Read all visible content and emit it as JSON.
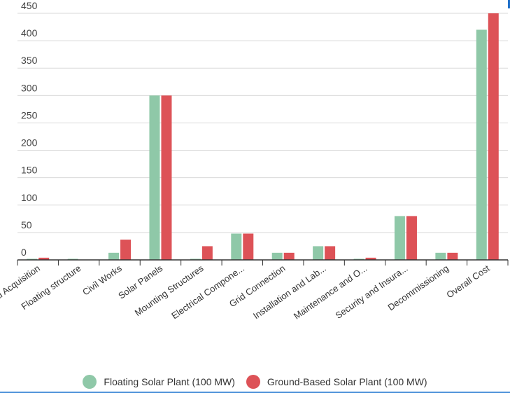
{
  "chart_data": {
    "type": "bar",
    "categories": [
      "Land Acquisition",
      "Floating structure",
      "Civil Works",
      "Solar Panels",
      "Mounting Structures",
      "Electrical Compone...",
      "Grid Connection",
      "Installation and Lab...",
      "Maintenance and O...",
      "Security and Insura...",
      "Decommissioning",
      "Overall Cost"
    ],
    "series": [
      {
        "name": "Floating Solar Plant (100 MW)",
        "color": "#8fc8a8",
        "values": [
          2,
          2,
          13,
          300,
          2,
          48,
          13,
          25,
          2,
          80,
          13,
          420
        ]
      },
      {
        "name": "Ground-Based Solar Plant (100 MW)",
        "color": "#dd5257",
        "values": [
          4,
          0,
          37,
          300,
          25,
          48,
          13,
          25,
          4,
          80,
          13,
          450
        ]
      }
    ],
    "ylim": [
      0,
      450
    ],
    "yticks": [
      0,
      50,
      100,
      150,
      200,
      250,
      300,
      350,
      400,
      450
    ],
    "grid": true,
    "legend_position": "bottom"
  }
}
